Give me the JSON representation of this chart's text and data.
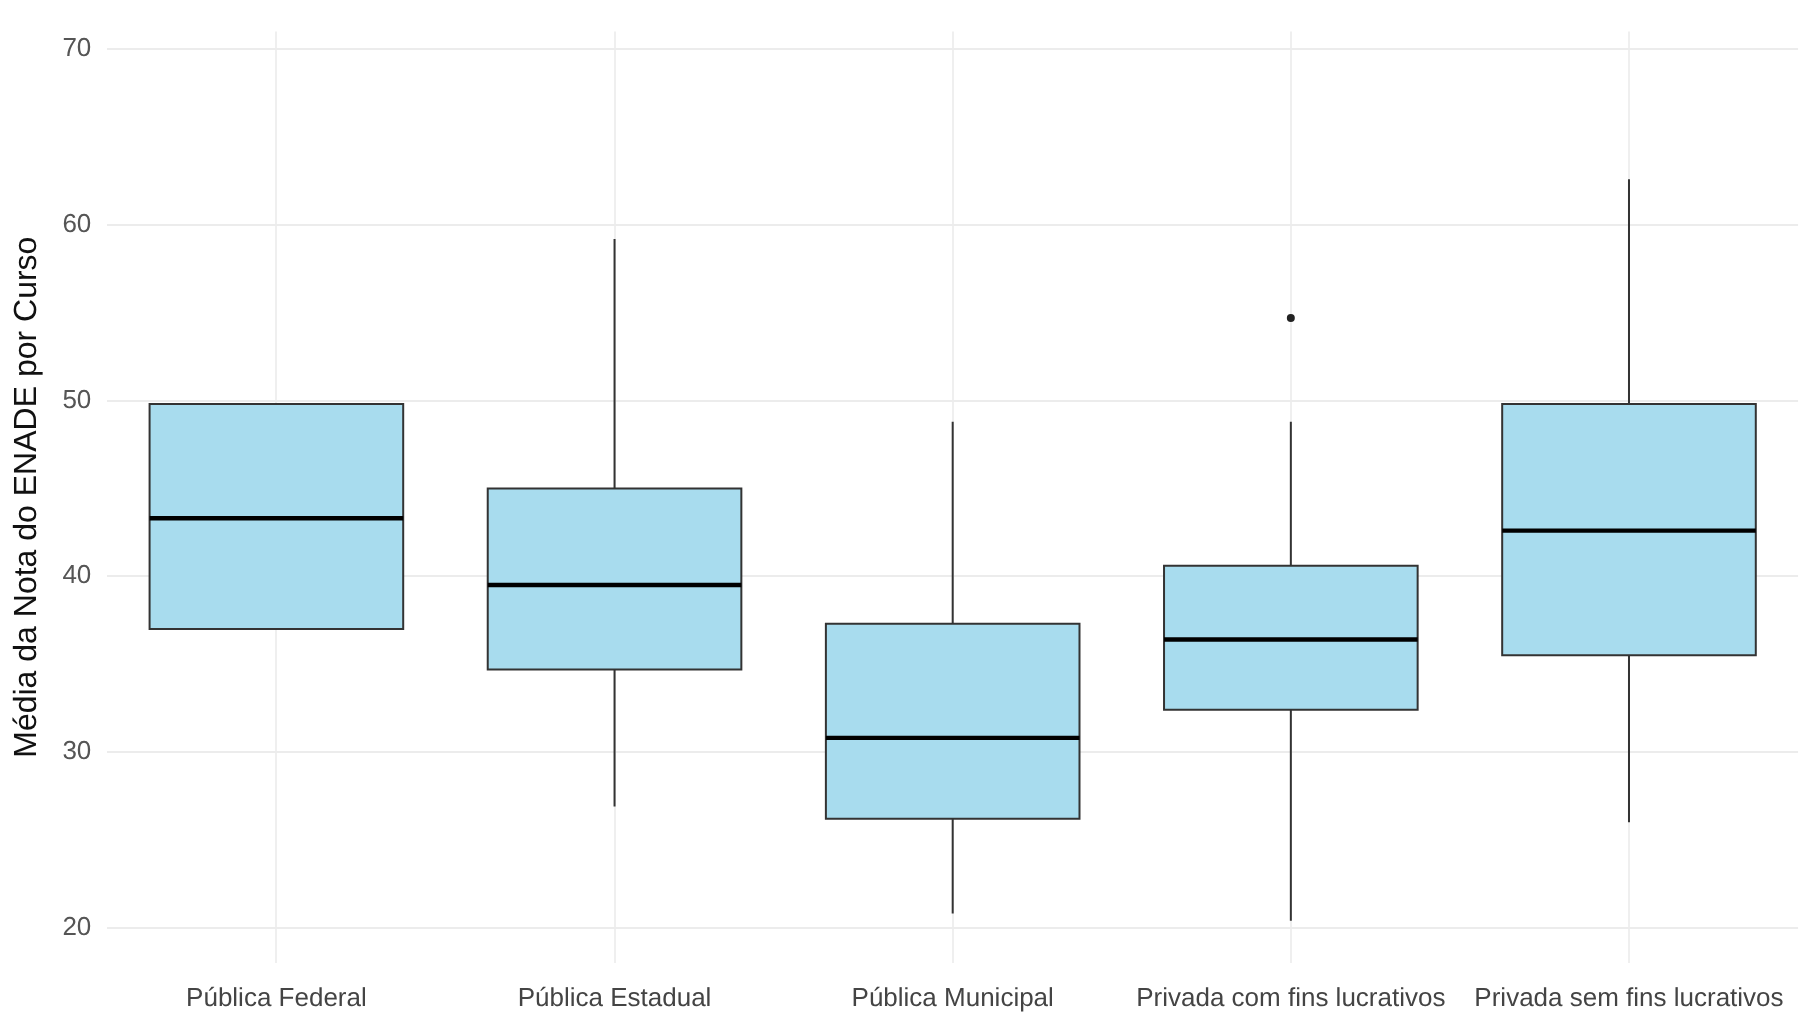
{
  "chart_data": {
    "type": "box",
    "ylabel": "Média da Nota do ENADE por Curso",
    "categories": [
      "Pública Federal",
      "Pública Estadual",
      "Pública Municipal",
      "Privada com fins lucrativos",
      "Privada sem fins lucrativos"
    ],
    "color": "#a8dcee",
    "boxes": [
      {
        "low": 37.0,
        "q1": 37.0,
        "median": 43.3,
        "q3": 49.8,
        "high": 49.8
      },
      {
        "low": 26.9,
        "q1": 34.7,
        "median": 39.5,
        "q3": 45.0,
        "high": 59.2
      },
      {
        "low": 20.8,
        "q1": 26.2,
        "median": 30.8,
        "q3": 37.3,
        "high": 48.8
      },
      {
        "low": 20.4,
        "q1": 32.4,
        "median": 36.4,
        "q3": 40.6,
        "high": 48.8,
        "outliers": [
          54.7
        ]
      },
      {
        "low": 26.0,
        "q1": 35.5,
        "median": 42.6,
        "q3": 49.8,
        "high": 62.6
      }
    ],
    "ylim": [
      18,
      71
    ],
    "yticks": [
      20,
      30,
      40,
      50,
      60,
      70
    ],
    "grid": true,
    "legend": false
  }
}
